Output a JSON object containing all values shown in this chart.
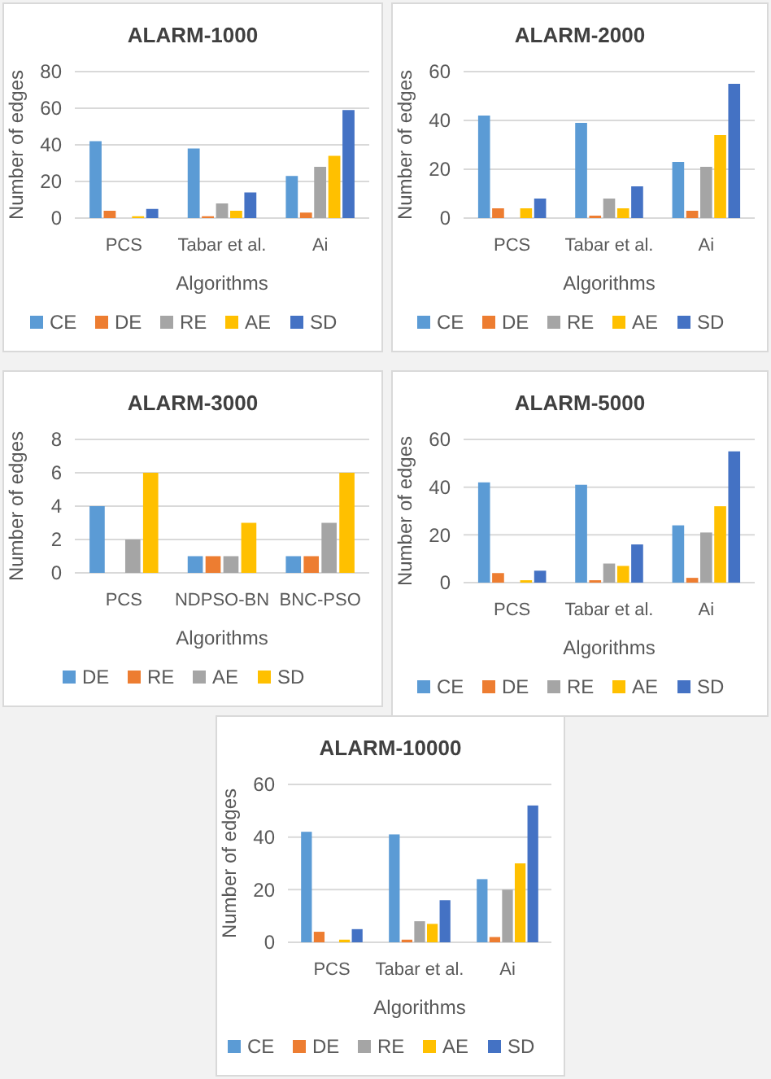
{
  "chart_data": [
    {
      "type": "bar",
      "title": "ALARM-1000",
      "xlabel": "Algorithms",
      "ylabel": "Number of edges",
      "categories": [
        "PCS",
        "Tabar et al.",
        "Ai"
      ],
      "ylim": [
        0,
        80
      ],
      "yticks": [
        0,
        20,
        40,
        60,
        80
      ],
      "grid": "y",
      "legend": "bottom",
      "series": [
        {
          "name": "CE",
          "color": "#5b9bd5",
          "values": [
            42,
            38,
            23
          ]
        },
        {
          "name": "DE",
          "color": "#ed7d31",
          "values": [
            4,
            1,
            3
          ]
        },
        {
          "name": "RE",
          "color": "#a5a5a5",
          "values": [
            0,
            8,
            28
          ]
        },
        {
          "name": "AE",
          "color": "#ffc000",
          "values": [
            1,
            4,
            34
          ]
        },
        {
          "name": "SD",
          "color": "#4472c4",
          "values": [
            5,
            14,
            59
          ]
        }
      ]
    },
    {
      "type": "bar",
      "title": "ALARM-2000",
      "xlabel": "Algorithms",
      "ylabel": "Number of edges",
      "categories": [
        "PCS",
        "Tabar et al.",
        "Ai"
      ],
      "ylim": [
        0,
        60
      ],
      "yticks": [
        0,
        20,
        40,
        60
      ],
      "grid": "y",
      "legend": "bottom",
      "series": [
        {
          "name": "CE",
          "color": "#5b9bd5",
          "values": [
            42,
            39,
            23
          ]
        },
        {
          "name": "DE",
          "color": "#ed7d31",
          "values": [
            4,
            1,
            3
          ]
        },
        {
          "name": "RE",
          "color": "#a5a5a5",
          "values": [
            0,
            8,
            21
          ]
        },
        {
          "name": "AE",
          "color": "#ffc000",
          "values": [
            4,
            4,
            34
          ]
        },
        {
          "name": "SD",
          "color": "#4472c4",
          "values": [
            8,
            13,
            55
          ]
        }
      ]
    },
    {
      "type": "bar",
      "title": "ALARM-3000",
      "xlabel": "Algorithms",
      "ylabel": "Number of edges",
      "categories": [
        "PCS",
        "NDPSO-BN",
        "BNC-PSO"
      ],
      "ylim": [
        0,
        8
      ],
      "yticks": [
        0,
        2,
        4,
        6,
        8
      ],
      "grid": "y",
      "legend": "bottom",
      "series": [
        {
          "name": "DE",
          "color": "#5b9bd5",
          "values": [
            4,
            1,
            1
          ]
        },
        {
          "name": "RE",
          "color": "#ed7d31",
          "values": [
            0,
            1,
            1
          ]
        },
        {
          "name": "AE",
          "color": "#a5a5a5",
          "values": [
            2,
            1,
            3
          ]
        },
        {
          "name": "SD",
          "color": "#ffc000",
          "values": [
            6,
            3,
            6
          ]
        }
      ]
    },
    {
      "type": "bar",
      "title": "ALARM-5000",
      "xlabel": "Algorithms",
      "ylabel": "Number of edges",
      "categories": [
        "PCS",
        "Tabar et al.",
        "Ai"
      ],
      "ylim": [
        0,
        60
      ],
      "yticks": [
        0,
        20,
        40,
        60
      ],
      "grid": "y",
      "legend": "bottom",
      "series": [
        {
          "name": "CE",
          "color": "#5b9bd5",
          "values": [
            42,
            41,
            24
          ]
        },
        {
          "name": "DE",
          "color": "#ed7d31",
          "values": [
            4,
            1,
            2
          ]
        },
        {
          "name": "RE",
          "color": "#a5a5a5",
          "values": [
            0,
            8,
            21
          ]
        },
        {
          "name": "AE",
          "color": "#ffc000",
          "values": [
            1,
            7,
            32
          ]
        },
        {
          "name": "SD",
          "color": "#4472c4",
          "values": [
            5,
            16,
            55
          ]
        }
      ]
    },
    {
      "type": "bar",
      "title": "ALARM-10000",
      "xlabel": "Algorithms",
      "ylabel": "Number of edges",
      "categories": [
        "PCS",
        "Tabar et al.",
        "Ai"
      ],
      "ylim": [
        0,
        60
      ],
      "yticks": [
        0,
        20,
        40,
        60
      ],
      "grid": "y",
      "legend": "bottom",
      "series": [
        {
          "name": "CE",
          "color": "#5b9bd5",
          "values": [
            42,
            41,
            24
          ]
        },
        {
          "name": "DE",
          "color": "#ed7d31",
          "values": [
            4,
            1,
            2
          ]
        },
        {
          "name": "RE",
          "color": "#a5a5a5",
          "values": [
            0,
            8,
            20
          ]
        },
        {
          "name": "AE",
          "color": "#ffc000",
          "values": [
            1,
            7,
            30
          ]
        },
        {
          "name": "SD",
          "color": "#4472c4",
          "values": [
            5,
            16,
            52
          ]
        }
      ]
    }
  ]
}
